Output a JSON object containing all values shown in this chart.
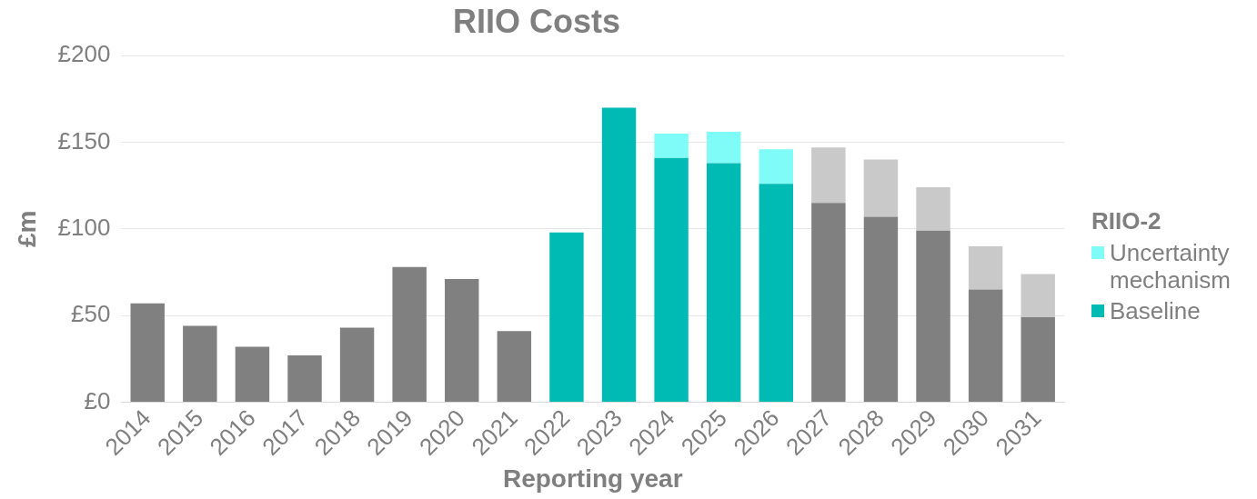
{
  "chart_data": {
    "type": "bar",
    "title": "RIIO Costs",
    "xlabel": "Reporting year",
    "ylabel": "£m",
    "legend_title": "RIIO-2",
    "legend": "right",
    "stacked": true,
    "grid": "y",
    "categories": [
      "2014",
      "2015",
      "2016",
      "2017",
      "2018",
      "2019",
      "2020",
      "2021",
      "2022",
      "2023",
      "2024",
      "2025",
      "2026",
      "2027",
      "2028",
      "2029",
      "2030",
      "2031"
    ],
    "series": [
      {
        "name": "Baseline",
        "color": "#00bbb4",
        "values": [
          57,
          44,
          32,
          27,
          43,
          78,
          71,
          41,
          98,
          170,
          141,
          138,
          126,
          115,
          107,
          99,
          65,
          49
        ],
        "colors": [
          "#808080",
          "#808080",
          "#808080",
          "#808080",
          "#808080",
          "#808080",
          "#808080",
          "#808080",
          "#00bbb4",
          "#00bbb4",
          "#00bbb4",
          "#00bbb4",
          "#00bbb4",
          "#808080",
          "#808080",
          "#808080",
          "#808080",
          "#808080"
        ]
      },
      {
        "name": "Uncertainty mechanism",
        "color": "#7ffcf8",
        "values": [
          null,
          null,
          null,
          null,
          null,
          null,
          null,
          null,
          null,
          null,
          14,
          18,
          20,
          32,
          33,
          25,
          25,
          25
        ],
        "colors": [
          "#c9c9c9",
          "#c9c9c9",
          "#c9c9c9",
          "#c9c9c9",
          "#c9c9c9",
          "#c9c9c9",
          "#c9c9c9",
          "#c9c9c9",
          "#c9c9c9",
          "#c9c9c9",
          "#7ffcf8",
          "#7ffcf8",
          "#7ffcf8",
          "#c9c9c9",
          "#c9c9c9",
          "#c9c9c9",
          "#c9c9c9",
          "#c9c9c9"
        ]
      }
    ],
    "ylim": [
      0,
      200
    ],
    "yticks": [
      {
        "value": 0,
        "label": "£0"
      },
      {
        "value": 50,
        "label": "£50"
      },
      {
        "value": 100,
        "label": "£100"
      },
      {
        "value": 150,
        "label": "£150"
      },
      {
        "value": 200,
        "label": "£200"
      }
    ]
  }
}
